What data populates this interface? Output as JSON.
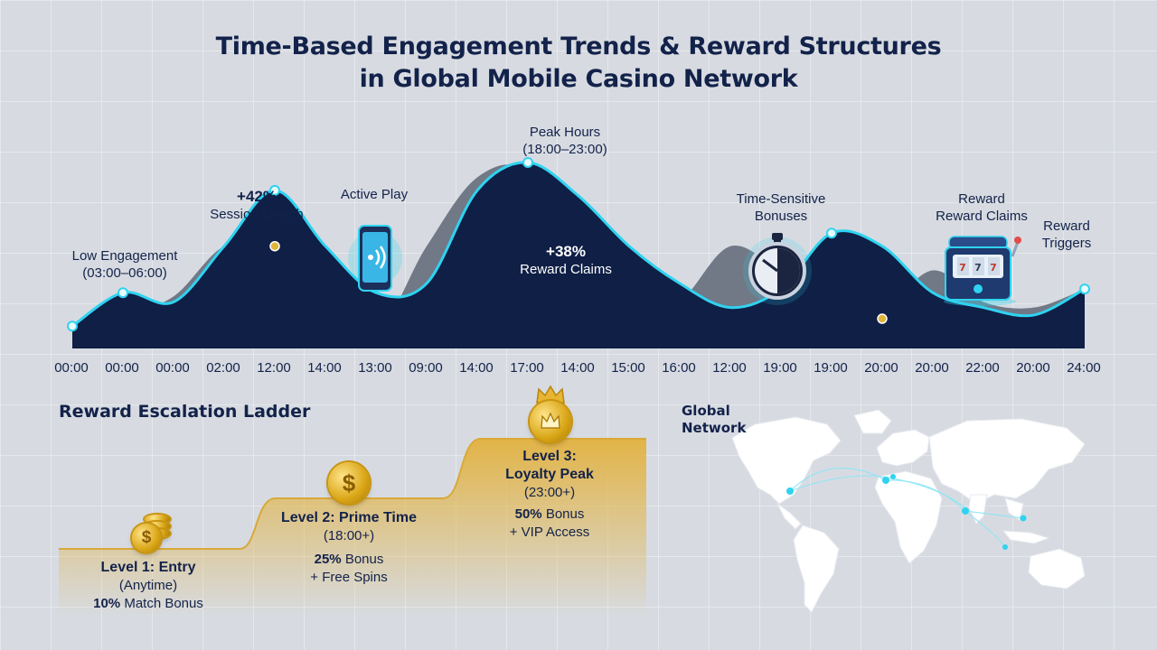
{
  "title": {
    "line1": "Time-Based Engagement Trends & Reward Structures",
    "line2": "in Global Mobile Casino Network"
  },
  "colors": {
    "navy": "#0f1f45",
    "accent_cyan": "#2fd3f0",
    "gray_wave": "#5f6675",
    "gold": "#e0b53a",
    "background": "#d7dbe1"
  },
  "chart_data": {
    "type": "area",
    "x_tick_labels": [
      "00:00",
      "00:00",
      "00:00",
      "02:00",
      "12:00",
      "14:00",
      "13:00",
      "09:00",
      "14:00",
      "17:00",
      "14:00",
      "15:00",
      "16:00",
      "12:00",
      "19:00",
      "19:00",
      "20:00",
      "20:00",
      "22:00",
      "20:00",
      "24:00"
    ],
    "series": [
      {
        "values": [
          0.12,
          0.18,
          0.28,
          0.55,
          0.55,
          0.38,
          0.1,
          0.55,
          0.92,
          0.95,
          0.5,
          0.15,
          0.25,
          0.55,
          0.4,
          0.15,
          0.2,
          0.42,
          0.25,
          0.22,
          0.32
        ]
      },
      {
        "values": [
          0.12,
          0.3,
          0.25,
          0.55,
          0.85,
          0.55,
          0.3,
          0.35,
          0.85,
          1.0,
          0.82,
          0.55,
          0.35,
          0.22,
          0.32,
          0.62,
          0.55,
          0.3,
          0.22,
          0.18,
          0.32
        ]
      }
    ],
    "grid": true
  },
  "callouts": {
    "low_engagement": {
      "label": "Low Engagement",
      "sub": "(03:00–06:00)"
    },
    "session_length": {
      "value": "+42%",
      "label": "Session Length"
    },
    "active_play": {
      "label": "Active Play"
    },
    "peak_hours": {
      "label": "Peak Hours",
      "sub": "(18:00–23:00)"
    },
    "reward_claims": {
      "value": "+38%",
      "label": "Reward Claims"
    },
    "time_sensitive": {
      "line1": "Time-Sensitive",
      "line2": "Bonuses"
    },
    "reward_reward_claims": {
      "line1": "Reward",
      "line2": "Reward Claims"
    },
    "reward_triggers": {
      "line1": "Reward",
      "line2": "Triggers"
    }
  },
  "icons": {
    "phone": "phone-icon",
    "stopwatch": "stopwatch-icon",
    "slot_machine": "slot-machine-icon",
    "coin": "coin-icon",
    "crown": "crown-icon"
  },
  "ladder": {
    "title": "Reward Escalation Ladder",
    "levels": [
      {
        "name": "Level 1: Entry",
        "sub": "(Anytime)",
        "perk_bold": "10%",
        "perk": " Match Bonus",
        "perk2": ""
      },
      {
        "name": "Level 2: Prime Time",
        "sub": "(18:00+)",
        "perk_bold": "25%",
        "perk": " Bonus",
        "perk2": "+ Free Spins"
      },
      {
        "name": "Level 3:",
        "name2": "Loyalty Peak",
        "sub": "(23:00+)",
        "perk_bold": "50%",
        "perk": " Bonus",
        "perk2": "+ VIP Access"
      }
    ],
    "coin_symbol": "$"
  },
  "map": {
    "label_line1": "Global",
    "label_line2": "Network"
  }
}
